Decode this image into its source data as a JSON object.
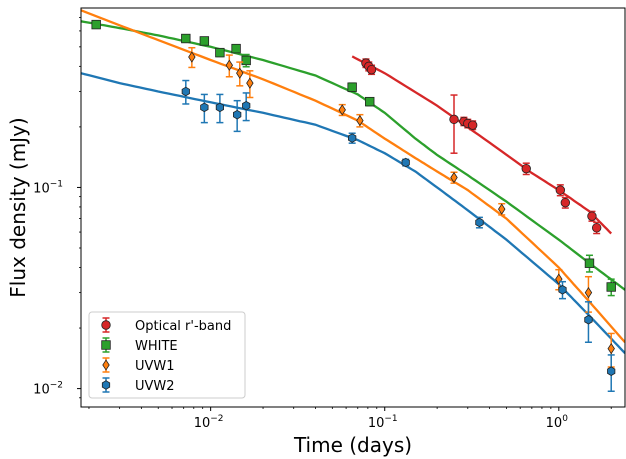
{
  "chart_data": {
    "type": "scatter",
    "xscale": "log",
    "yscale": "log",
    "xlabel": "Time (days)",
    "ylabel": "Flux density (mJy)",
    "xlim": [
      0.0018,
      2.4
    ],
    "ylim": [
      0.0081,
      0.78
    ],
    "x_ticks": [
      {
        "value": 0.01,
        "base": "10",
        "exp": "−2"
      },
      {
        "value": 0.1,
        "base": "10",
        "exp": "−1"
      },
      {
        "value": 1,
        "base": "10",
        "exp": "0"
      }
    ],
    "y_ticks": [
      {
        "value": 0.01,
        "base": "10",
        "exp": "−2"
      },
      {
        "value": 0.1,
        "base": "10",
        "exp": "−1"
      }
    ],
    "grid": false,
    "legend_position": "lower-left",
    "series": [
      {
        "name": "Optical r'-band",
        "color": "#d62728",
        "marker": "circle",
        "points": [
          {
            "x": 0.078,
            "y": 0.415,
            "err": 0.02
          },
          {
            "x": 0.081,
            "y": 0.4,
            "err": 0.02
          },
          {
            "x": 0.084,
            "y": 0.385,
            "err": 0.02
          },
          {
            "x": 0.25,
            "y": 0.218,
            "err": 0.07
          },
          {
            "x": 0.285,
            "y": 0.213,
            "err": 0.01
          },
          {
            "x": 0.3,
            "y": 0.208,
            "err": 0.01
          },
          {
            "x": 0.32,
            "y": 0.204,
            "err": 0.01
          },
          {
            "x": 0.65,
            "y": 0.124,
            "err": 0.008
          },
          {
            "x": 1.02,
            "y": 0.097,
            "err": 0.006
          },
          {
            "x": 1.09,
            "y": 0.084,
            "err": 0.005
          },
          {
            "x": 1.55,
            "y": 0.072,
            "err": 0.004
          },
          {
            "x": 1.65,
            "y": 0.063,
            "err": 0.004
          }
        ],
        "model": [
          {
            "x": 0.065,
            "y": 0.448
          },
          {
            "x": 0.1,
            "y": 0.37
          },
          {
            "x": 0.2,
            "y": 0.255
          },
          {
            "x": 0.4,
            "y": 0.167
          },
          {
            "x": 0.7,
            "y": 0.118
          },
          {
            "x": 1.0,
            "y": 0.097
          },
          {
            "x": 1.5,
            "y": 0.076
          },
          {
            "x": 2.0,
            "y": 0.059
          }
        ]
      },
      {
        "name": "WHITE",
        "color": "#2ca02c",
        "marker": "square",
        "points": [
          {
            "x": 0.0022,
            "y": 0.645,
            "err": 0.02
          },
          {
            "x": 0.0072,
            "y": 0.55,
            "err": 0.02
          },
          {
            "x": 0.0092,
            "y": 0.535,
            "err": 0.02
          },
          {
            "x": 0.0113,
            "y": 0.468,
            "err": 0.02
          },
          {
            "x": 0.014,
            "y": 0.49,
            "err": 0.02
          },
          {
            "x": 0.016,
            "y": 0.428,
            "err": 0.03
          },
          {
            "x": 0.065,
            "y": 0.315,
            "err": 0.015
          },
          {
            "x": 0.082,
            "y": 0.267,
            "err": 0.012
          },
          {
            "x": 1.5,
            "y": 0.042,
            "err": 0.004
          },
          {
            "x": 2.0,
            "y": 0.032,
            "err": 0.003
          }
        ],
        "model": [
          {
            "x": 0.0018,
            "y": 0.67
          },
          {
            "x": 0.003,
            "y": 0.62
          },
          {
            "x": 0.005,
            "y": 0.57
          },
          {
            "x": 0.01,
            "y": 0.5
          },
          {
            "x": 0.02,
            "y": 0.43
          },
          {
            "x": 0.04,
            "y": 0.36
          },
          {
            "x": 0.07,
            "y": 0.29
          },
          {
            "x": 0.1,
            "y": 0.235
          },
          {
            "x": 0.15,
            "y": 0.175
          },
          {
            "x": 0.2,
            "y": 0.145
          },
          {
            "x": 0.3,
            "y": 0.115
          },
          {
            "x": 0.5,
            "y": 0.085
          },
          {
            "x": 1.0,
            "y": 0.055
          },
          {
            "x": 1.5,
            "y": 0.042
          },
          {
            "x": 2.4,
            "y": 0.031
          }
        ]
      },
      {
        "name": "UVW1",
        "color": "#ff7f0e",
        "marker": "diamond",
        "points": [
          {
            "x": 0.0078,
            "y": 0.445,
            "err": 0.05
          },
          {
            "x": 0.0128,
            "y": 0.405,
            "err": 0.05
          },
          {
            "x": 0.0147,
            "y": 0.37,
            "err": 0.05
          },
          {
            "x": 0.0168,
            "y": 0.33,
            "err": 0.05
          },
          {
            "x": 0.057,
            "y": 0.243,
            "err": 0.015
          },
          {
            "x": 0.072,
            "y": 0.215,
            "err": 0.015
          },
          {
            "x": 0.25,
            "y": 0.112,
            "err": 0.007
          },
          {
            "x": 0.47,
            "y": 0.078,
            "err": 0.005
          },
          {
            "x": 1.0,
            "y": 0.035,
            "err": 0.004
          },
          {
            "x": 1.48,
            "y": 0.03,
            "err": 0.006
          },
          {
            "x": 2.0,
            "y": 0.0158,
            "err": 0.003
          }
        ],
        "model": [
          {
            "x": 0.0018,
            "y": 0.76
          },
          {
            "x": 0.003,
            "y": 0.64
          },
          {
            "x": 0.005,
            "y": 0.54
          },
          {
            "x": 0.01,
            "y": 0.43
          },
          {
            "x": 0.02,
            "y": 0.345
          },
          {
            "x": 0.04,
            "y": 0.27
          },
          {
            "x": 0.07,
            "y": 0.215
          },
          {
            "x": 0.1,
            "y": 0.175
          },
          {
            "x": 0.15,
            "y": 0.14
          },
          {
            "x": 0.2,
            "y": 0.12
          },
          {
            "x": 0.3,
            "y": 0.097
          },
          {
            "x": 0.5,
            "y": 0.07
          },
          {
            "x": 1.0,
            "y": 0.04
          },
          {
            "x": 1.5,
            "y": 0.027
          },
          {
            "x": 2.4,
            "y": 0.017
          }
        ]
      },
      {
        "name": "UVW2",
        "color": "#1f77b4",
        "marker": "hexagon",
        "points": [
          {
            "x": 0.0072,
            "y": 0.3,
            "err": 0.04
          },
          {
            "x": 0.0092,
            "y": 0.25,
            "err": 0.04
          },
          {
            "x": 0.0113,
            "y": 0.25,
            "err": 0.04
          },
          {
            "x": 0.0142,
            "y": 0.23,
            "err": 0.04
          },
          {
            "x": 0.016,
            "y": 0.255,
            "err": 0.04
          },
          {
            "x": 0.065,
            "y": 0.176,
            "err": 0.01
          },
          {
            "x": 0.132,
            "y": 0.133,
            "err": 0.005
          },
          {
            "x": 0.35,
            "y": 0.067,
            "err": 0.004
          },
          {
            "x": 1.05,
            "y": 0.031,
            "err": 0.003
          },
          {
            "x": 1.48,
            "y": 0.022,
            "err": 0.005
          },
          {
            "x": 2.0,
            "y": 0.0122,
            "err": 0.0025
          }
        ],
        "model": [
          {
            "x": 0.0018,
            "y": 0.37
          },
          {
            "x": 0.003,
            "y": 0.33
          },
          {
            "x": 0.005,
            "y": 0.3
          },
          {
            "x": 0.01,
            "y": 0.265
          },
          {
            "x": 0.02,
            "y": 0.235
          },
          {
            "x": 0.04,
            "y": 0.205
          },
          {
            "x": 0.07,
            "y": 0.172
          },
          {
            "x": 0.1,
            "y": 0.148
          },
          {
            "x": 0.15,
            "y": 0.12
          },
          {
            "x": 0.2,
            "y": 0.1
          },
          {
            "x": 0.3,
            "y": 0.077
          },
          {
            "x": 0.5,
            "y": 0.055
          },
          {
            "x": 1.0,
            "y": 0.033
          },
          {
            "x": 1.5,
            "y": 0.023
          },
          {
            "x": 2.4,
            "y": 0.015
          }
        ]
      }
    ]
  }
}
